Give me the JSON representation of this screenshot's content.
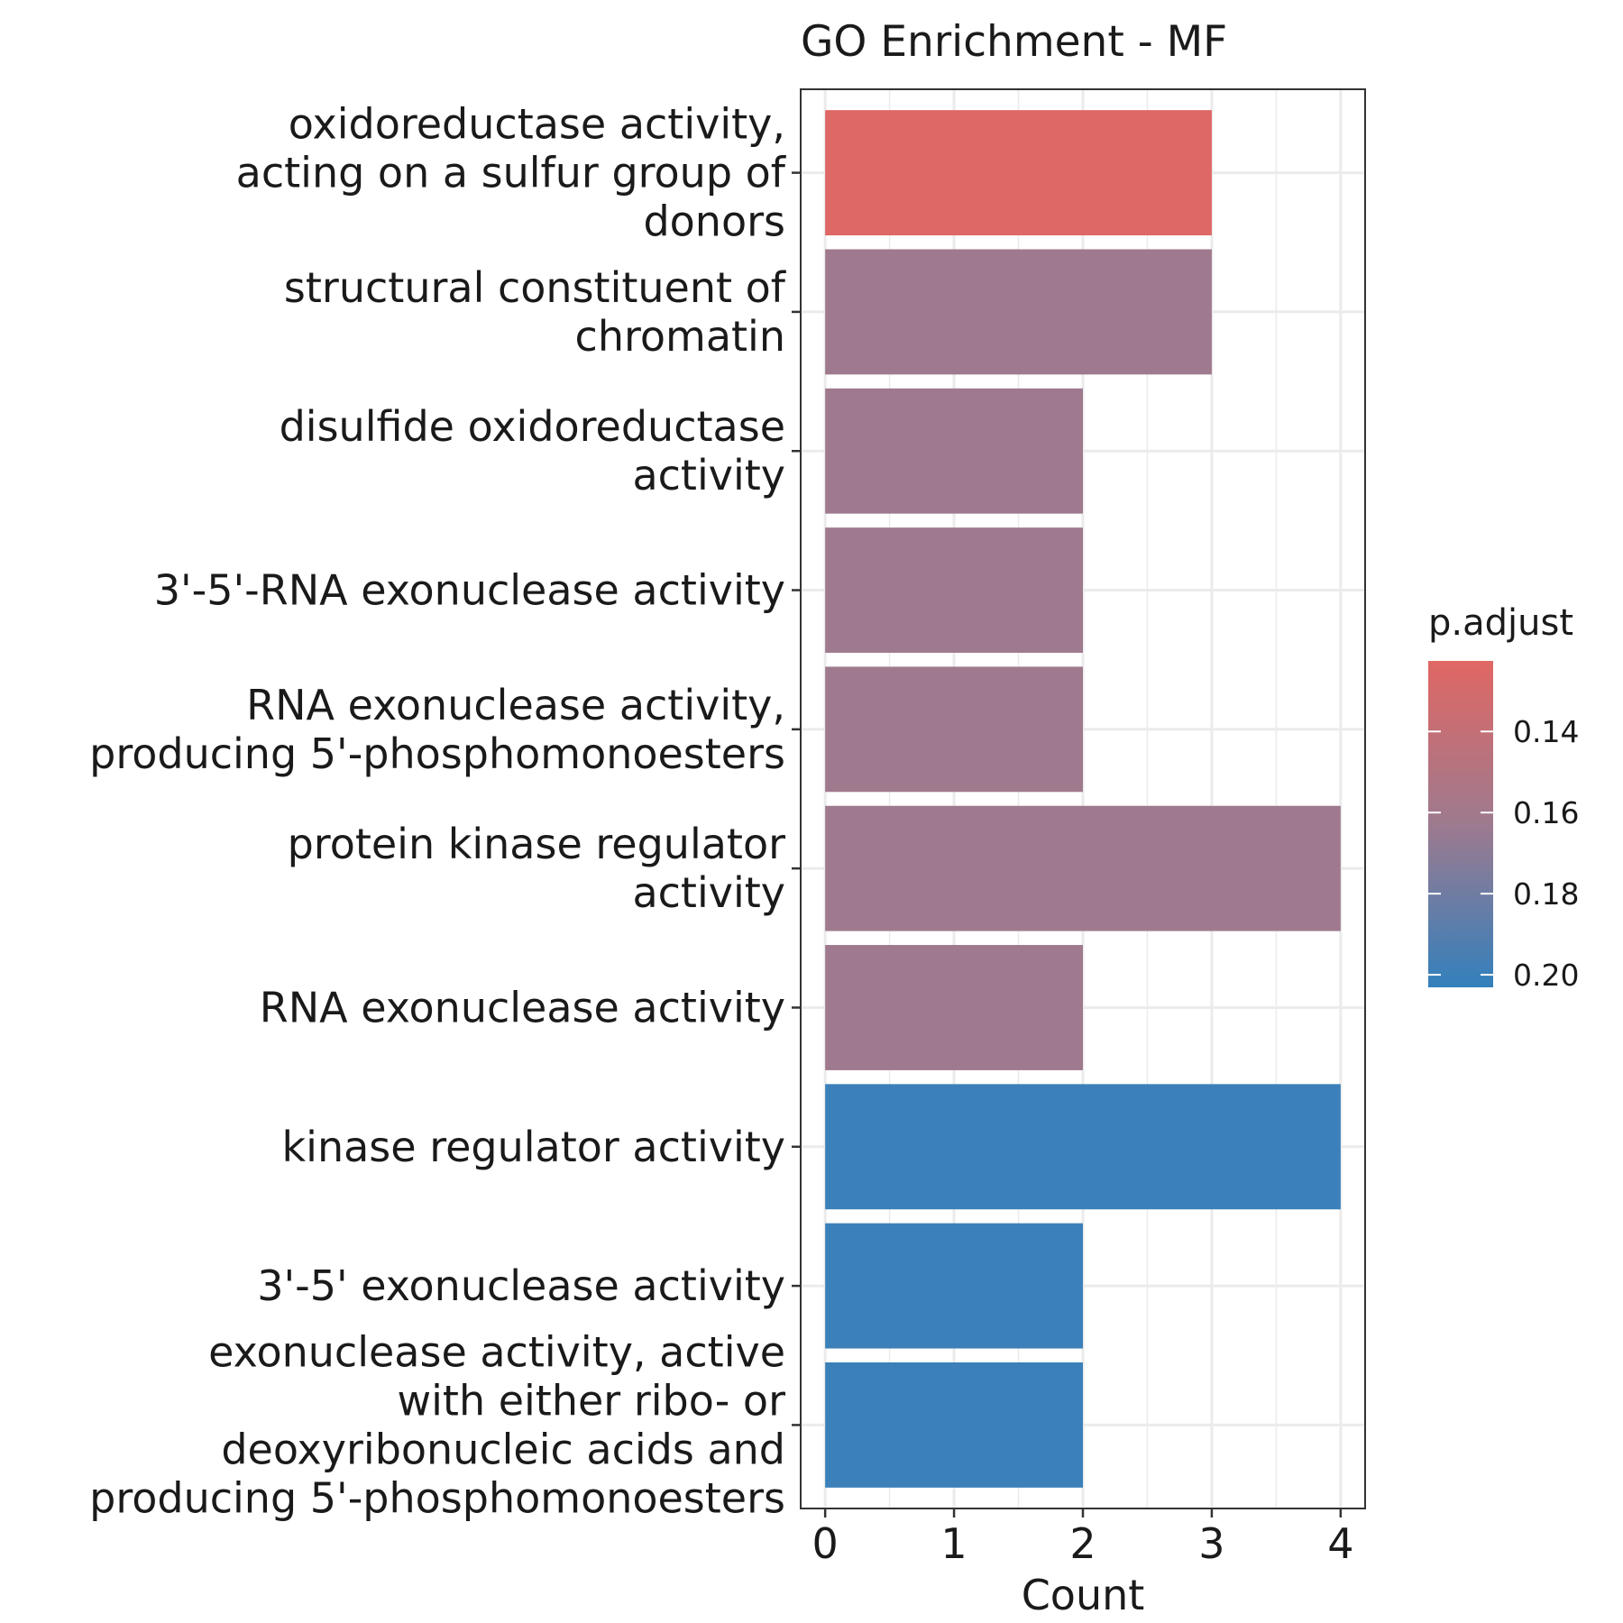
{
  "chart_data": {
    "type": "bar",
    "orientation": "horizontal",
    "title": "GO Enrichment - MF",
    "xlabel": "Count",
    "ylabel": "",
    "xlim": [
      -0.19,
      4.19
    ],
    "x_ticks": [
      0,
      1,
      2,
      3,
      4
    ],
    "grid": true,
    "legend": {
      "title": "p.adjust",
      "position": "right",
      "type": "colorbar",
      "low_color": "#E06763",
      "high_color": "#3380BC",
      "range": [
        0.1226,
        0.2031
      ],
      "ticks": [
        "0.14",
        "0.16",
        "0.18",
        "0.20"
      ]
    },
    "categories": [
      [
        "oxidoreductase activity,",
        "acting on a sulfur group of",
        "donors"
      ],
      [
        "structural constituent of",
        "chromatin"
      ],
      [
        "disulfide oxidoreductase",
        "activity"
      ],
      [
        "3'-5'-RNA exonuclease activity"
      ],
      [
        "RNA exonuclease activity,",
        "producing 5'-phosphomonoesters"
      ],
      [
        "protein kinase regulator",
        "activity"
      ],
      [
        "RNA exonuclease activity"
      ],
      [
        "kinase regulator activity"
      ],
      [
        "3'-5' exonuclease activity"
      ],
      [
        "exonuclease activity, active",
        "with either ribo- or",
        "deoxyribonucleic acids and",
        "producing 5'-phosphomonoesters"
      ]
    ],
    "values": [
      3,
      3,
      2,
      2,
      2,
      4,
      2,
      4,
      2,
      2
    ],
    "p_adjust": [
      0.124,
      0.162,
      0.162,
      0.162,
      0.162,
      0.162,
      0.162,
      0.2,
      0.2,
      0.2
    ]
  }
}
